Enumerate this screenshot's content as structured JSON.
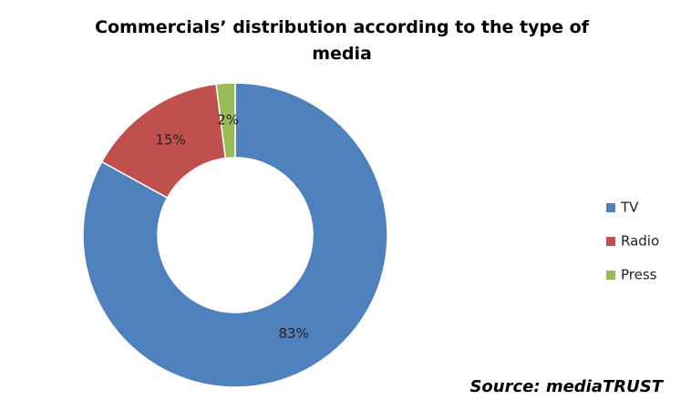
{
  "chart_data": {
    "type": "donut",
    "title": "Commercials’ distribution according to the type of media",
    "categories": [
      "TV",
      "Radio",
      "Press"
    ],
    "values": [
      83,
      15,
      2
    ],
    "value_labels": [
      "83%",
      "15%",
      "2%"
    ],
    "colors": [
      "#4f81bd",
      "#c0504d",
      "#9bbb59"
    ],
    "legend": "right",
    "annotation": "Source: mediaTRUST"
  }
}
